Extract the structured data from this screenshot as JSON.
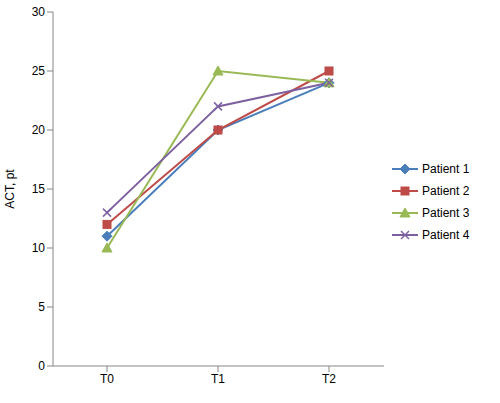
{
  "chart_data": {
    "type": "line",
    "y_label": "ACT, pt",
    "categories": [
      "T0",
      "T1",
      "T2"
    ],
    "ylim": [
      0,
      30
    ],
    "yticks": [
      0,
      5,
      10,
      15,
      20,
      25,
      30
    ],
    "legend": "right",
    "series": [
      {
        "name": "Patient 1",
        "color": "#4a7ebb",
        "marker": "diamond",
        "values": [
          11,
          20,
          24
        ]
      },
      {
        "name": "Patient 2",
        "color": "#be4b48",
        "marker": "square",
        "values": [
          12,
          20,
          25
        ]
      },
      {
        "name": "Patient 3",
        "color": "#98b954",
        "marker": "triangle",
        "values": [
          10,
          25,
          24
        ]
      },
      {
        "name": "Patient 4",
        "color": "#7d60a0",
        "marker": "x",
        "values": [
          13,
          22,
          24
        ]
      }
    ]
  }
}
